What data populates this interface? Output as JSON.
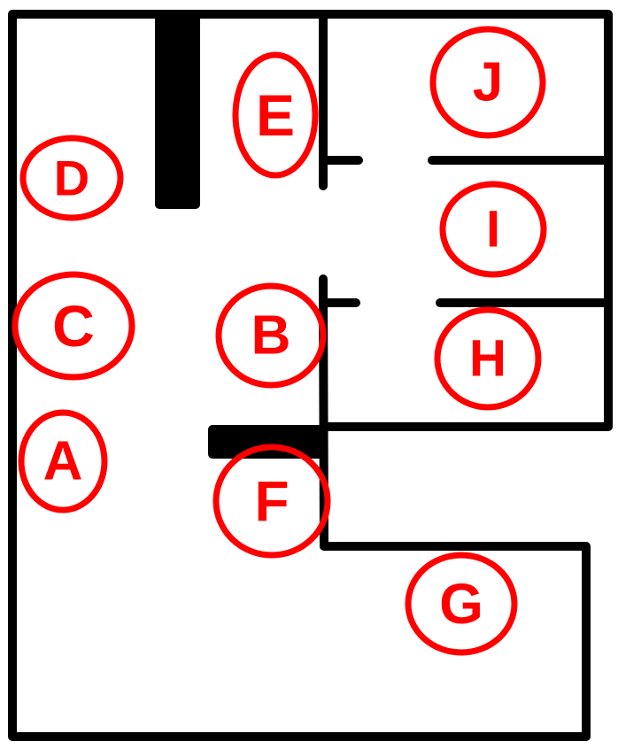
{
  "colors": {
    "wall": "#000000",
    "label": "#ff0000",
    "background": "#ffffff"
  },
  "labels": {
    "A": "A",
    "B": "B",
    "C": "C",
    "D": "D",
    "E": "E",
    "F": "F",
    "G": "G",
    "H": "H",
    "I": "I",
    "J": "J"
  }
}
